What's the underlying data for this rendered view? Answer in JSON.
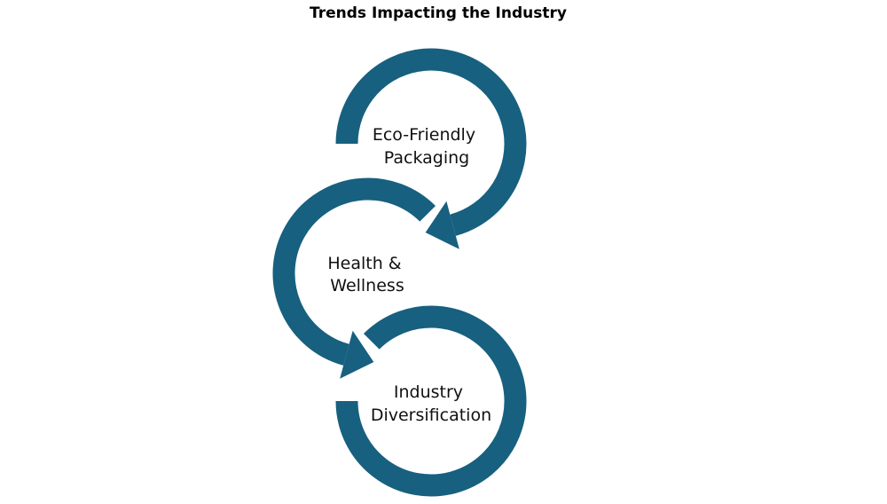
{
  "title": "Trends Impacting the Industry",
  "colors": {
    "ring": "#17607f",
    "text": "#111111"
  },
  "nodes": [
    {
      "line1": "Eco-Friendly",
      "line2": "Packaging"
    },
    {
      "line1": "Health &",
      "line2": "Wellness"
    },
    {
      "line1": "Industry",
      "line2": "Diversification"
    }
  ]
}
